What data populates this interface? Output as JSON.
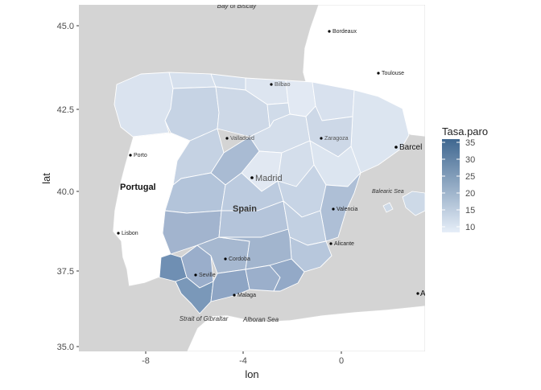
{
  "chart": {
    "xlabel": "lon",
    "ylabel": "lat",
    "x_ticks": [
      "-8",
      "-4",
      "0"
    ],
    "y_ticks": [
      "35.0",
      "37.5",
      "40.0",
      "42.5",
      "45.0"
    ]
  },
  "legend": {
    "title": "Tasa.paro",
    "ticks": [
      "35",
      "30",
      "25",
      "20",
      "15",
      "10"
    ],
    "color_low": "#e6eef8",
    "color_high": "#3f6790"
  },
  "map_labels": {
    "bay_of_biscay": "Bay of Biscay",
    "bordeaux": "Bordeaux",
    "toulouse": "Toulouse",
    "bilbao": "Bilbao",
    "valladolid": "Valladolid",
    "zaragoza": "Zaragoza",
    "barcelona": "Barcel",
    "porto": "Porto",
    "portugal": "Portugal",
    "madrid": "Madrid",
    "spain": "Spain",
    "valencia": "Valencia",
    "balearic_sea": "Balearic Sea",
    "lisbon": "Lisbon",
    "alicante": "Alicante",
    "cordoba": "Cordoba",
    "seville": "Seville",
    "malaga": "Malaga",
    "strait_of_gibraltar": "Strait of Gibraltar",
    "alboran_sea": "Alboran Sea",
    "edge_east": "A"
  },
  "chart_data": {
    "type": "heatmap",
    "xlim": [
      -11,
      3.5
    ],
    "ylim": [
      34.8,
      45.6
    ],
    "value_range": [
      8,
      36
    ],
    "grid": false,
    "legend_position": "right"
  }
}
